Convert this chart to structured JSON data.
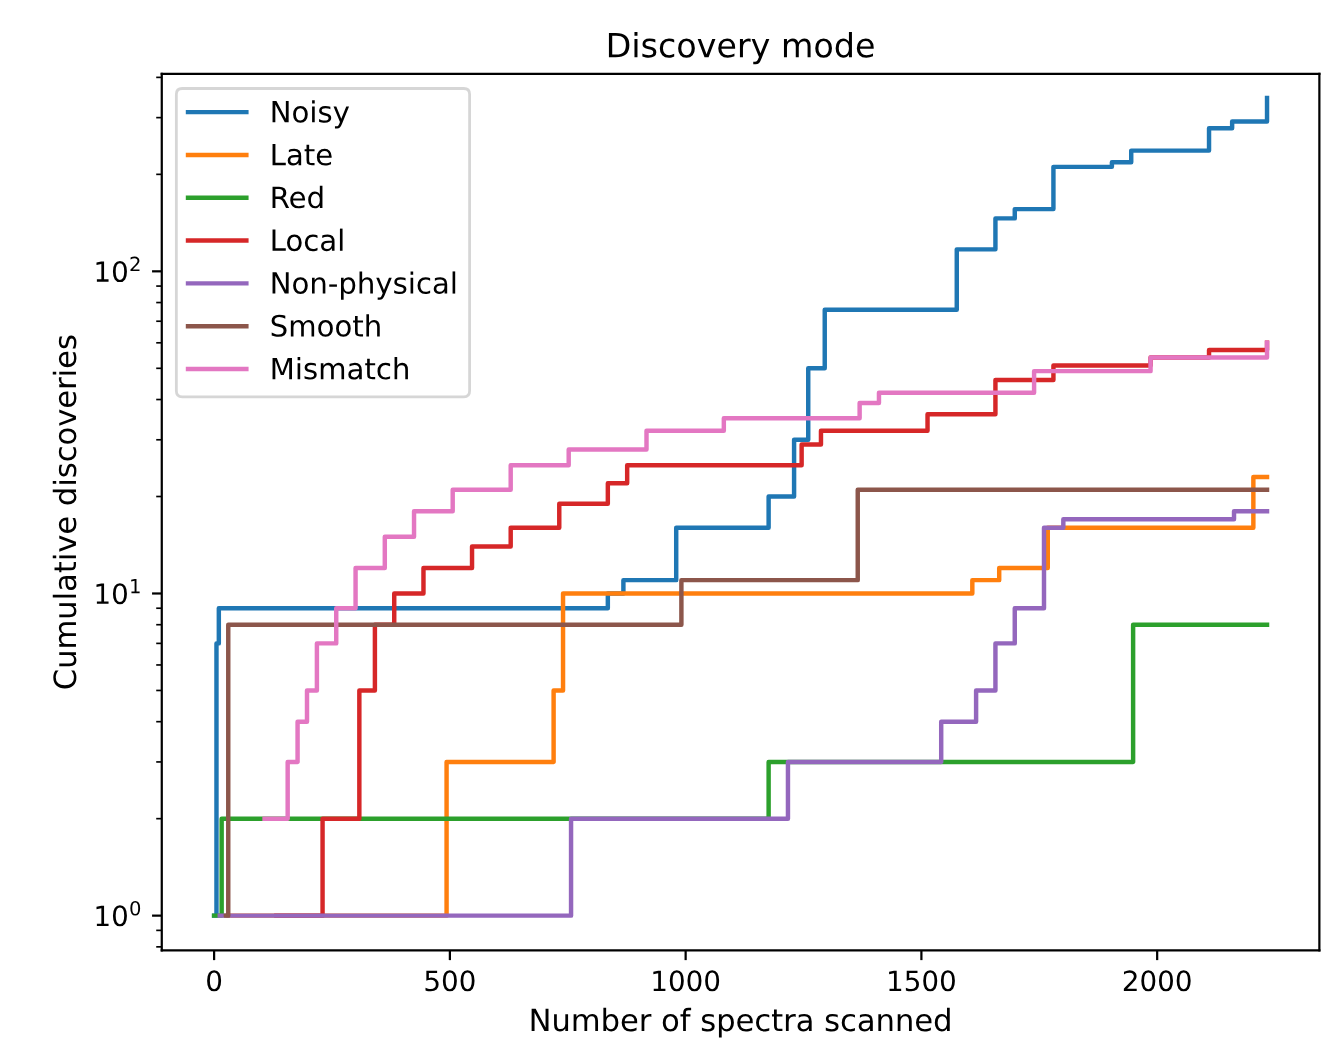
{
  "chart_data": {
    "type": "step",
    "title": "Discovery mode",
    "xlabel": "Number of spectra scanned",
    "ylabel": "Cumulative discoveries",
    "log": "y",
    "grid": false,
    "legend": "top left",
    "marker": "none",
    "line_style": "solid",
    "xlim": [
      -111,
      2344
    ],
    "xticks": [
      0,
      500,
      1000,
      1500,
      2000
    ],
    "ylim": [
      0.78,
      410
    ],
    "yticks": [
      {
        "value": 1,
        "label": "10$^{0}$"
      },
      {
        "value": 10,
        "label": "10$^{1}$"
      },
      {
        "value": 100,
        "label": "10$^{2}$"
      }
    ],
    "series": [
      {
        "name": "Noisy",
        "color": "#1f77b4",
        "x": [
          0,
          5,
          10,
          835,
          868,
          980,
          1176,
          1230,
          1260,
          1295,
          1542,
          1575,
          1657,
          1698,
          1780,
          1904,
          1945,
          2068,
          2110,
          2159,
          2233
        ],
        "values": [
          1,
          7,
          9,
          10,
          11,
          16,
          20,
          30,
          50,
          76,
          76,
          117,
          146,
          156,
          211,
          218,
          237,
          237,
          278,
          292,
          345
        ]
      },
      {
        "name": "Late",
        "color": "#ff7f0e",
        "x": [
          29,
          493,
          720,
          740,
          1608,
          1665,
          1768,
          2204,
          2233
        ],
        "values": [
          1,
          3,
          5,
          10,
          11,
          12,
          16,
          23,
          23
        ]
      },
      {
        "name": "Red",
        "color": "#2ca02c",
        "x": [
          0,
          16,
          1176,
          1949,
          2233
        ],
        "values": [
          1,
          2,
          3,
          8,
          8
        ]
      },
      {
        "name": "Local",
        "color": "#d62728",
        "x": [
          132,
          230,
          308,
          341,
          382,
          444,
          547,
          629,
          732,
          835,
          876,
          1246,
          1287,
          1513,
          1657,
          1780,
          1986,
          2110,
          2233
        ],
        "values": [
          1,
          2,
          5,
          8,
          10,
          12,
          14,
          16,
          19,
          22,
          25,
          29,
          32,
          36,
          46,
          51,
          54,
          57,
          60
        ]
      },
      {
        "name": "Non-physical",
        "color": "#9467bd",
        "x": [
          12,
          757,
          1217,
          1542,
          1616,
          1657,
          1698,
          1760,
          1801,
          2163,
          2233
        ],
        "values": [
          1,
          2,
          3,
          4,
          5,
          7,
          9,
          16,
          17,
          18,
          18
        ]
      },
      {
        "name": "Smooth",
        "color": "#8c564b",
        "x": [
          25,
          30,
          991,
          1365,
          2233
        ],
        "values": [
          1,
          8,
          11,
          21,
          21
        ]
      },
      {
        "name": "Mismatch",
        "color": "#e377c2",
        "x": [
          107,
          156,
          177,
          197,
          218,
          259,
          300,
          362,
          424,
          506,
          629,
          752,
          917,
          1081,
          1369,
          1410,
          1739,
          1986,
          2233
        ],
        "values": [
          2,
          3,
          4,
          5,
          7,
          9,
          12,
          15,
          18,
          21,
          25,
          28,
          32,
          35,
          39,
          42,
          49,
          54,
          60
        ]
      }
    ]
  }
}
